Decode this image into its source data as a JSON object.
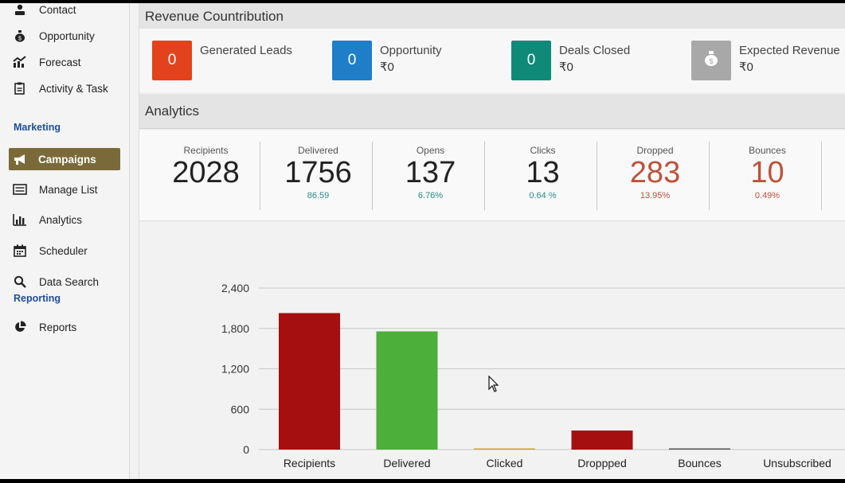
{
  "sidebar": {
    "items": [
      {
        "label": "Contact",
        "icon": "contact-icon"
      },
      {
        "label": "Opportunity",
        "icon": "money-bag-icon"
      },
      {
        "label": "Forecast",
        "icon": "forecast-icon"
      },
      {
        "label": "Activity & Task",
        "icon": "activity-task-icon"
      }
    ],
    "marketing_heading": "Marketing",
    "marketing_items": [
      {
        "label": "Campaigns",
        "icon": "megaphone-icon",
        "active": true
      },
      {
        "label": "Manage List",
        "icon": "list-icon"
      },
      {
        "label": "Analytics",
        "icon": "bar-chart-icon"
      },
      {
        "label": "Scheduler",
        "icon": "calendar-icon"
      },
      {
        "label": "Data Search",
        "icon": "search-icon"
      }
    ],
    "reporting_heading": "Reporting",
    "reporting_items": [
      {
        "label": "Reports",
        "icon": "pie-chart-icon"
      }
    ]
  },
  "revenue": {
    "title": "Revenue Countribution",
    "cards": [
      {
        "label": "Generated Leads",
        "value": "0",
        "amount": "",
        "color": "#e3431c"
      },
      {
        "label": "Opportunity",
        "value": "0",
        "amount": "₹0",
        "color": "#1e7fc8"
      },
      {
        "label": "Deals Closed",
        "value": "0",
        "amount": "₹0",
        "color": "#0f8a78"
      },
      {
        "label": "Expected Revenue",
        "value": "",
        "amount": "₹0",
        "color": "#a8a8a8",
        "icon": "money-bag-icon"
      }
    ]
  },
  "analytics": {
    "title": "Analytics",
    "stats": [
      {
        "label": "Recipients",
        "value": "2028",
        "pct": ""
      },
      {
        "label": "Delivered",
        "value": "1756",
        "pct": "86.59"
      },
      {
        "label": "Opens",
        "value": "137",
        "pct": "6.76%"
      },
      {
        "label": "Clicks",
        "value": "13",
        "pct": "0.64 %"
      },
      {
        "label": "Dropped",
        "value": "283",
        "pct": "13.95%",
        "alert": true
      },
      {
        "label": "Bounces",
        "value": "10",
        "pct": "0.49%",
        "alert": true
      }
    ]
  },
  "chart_data": {
    "type": "bar",
    "categories": [
      "Recipients",
      "Delivered",
      "Clicked",
      "Droppped",
      "Bounces",
      "Unsubscribed"
    ],
    "values": [
      2028,
      1756,
      13,
      283,
      10,
      0
    ],
    "colors": [
      "#a50f0f",
      "#4caf3a",
      "#c9a33a",
      "#a50f0f",
      "#555555",
      "#555555"
    ],
    "yticks": [
      "0",
      "600",
      "1,200",
      "1,800",
      "2,400"
    ],
    "ylim": [
      0,
      2400
    ],
    "grid": true
  }
}
